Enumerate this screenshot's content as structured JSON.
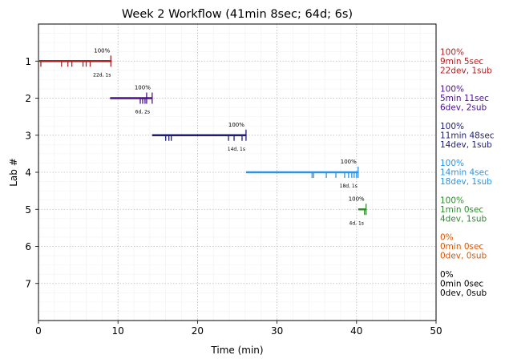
{
  "chart_data": {
    "type": "timeline",
    "title": "Week 2 Workflow (41min 8sec; 64d; 6s)",
    "xlabel": "Time (min)",
    "ylabel": "Lab #",
    "xlim": [
      0,
      50
    ],
    "ylim": [
      0,
      8
    ],
    "x_ticks": [
      0,
      10,
      20,
      30,
      40,
      50
    ],
    "y_ticks": [
      1,
      2,
      3,
      4,
      5,
      6,
      7
    ],
    "grid": true,
    "labs": [
      {
        "lab": 1,
        "color": "#b22222",
        "start": 0.1,
        "end": 9.2,
        "pct_label": "100%",
        "counts_label": "22d, 1s",
        "dev_ticks": [
          0.3,
          2.9,
          3.7,
          4.2,
          5.6,
          6.0,
          6.5
        ],
        "sub_ticks": [
          9.1
        ],
        "summary": [
          "100%",
          "9min 5sec",
          "22dev, 1sub"
        ]
      },
      {
        "lab": 2,
        "color": "#4b0f8f",
        "start": 9.0,
        "end": 14.3,
        "pct_label": "100%",
        "counts_label": "6d, 2s",
        "dev_ticks": [
          12.8,
          13.1,
          13.4
        ],
        "sub_ticks": [
          13.6,
          14.3
        ],
        "summary": [
          "100%",
          "5min 11sec",
          "6dev, 2sub"
        ]
      },
      {
        "lab": 3,
        "color": "#1c1c7a",
        "start": 14.3,
        "end": 26.1,
        "pct_label": "100%",
        "counts_label": "14d, 1s",
        "dev_ticks": [
          16.0,
          16.4,
          16.7,
          23.9,
          24.6,
          25.6
        ],
        "sub_ticks": [
          26.1
        ],
        "summary": [
          "100%",
          "11min 48sec",
          "14dev, 1sub"
        ]
      },
      {
        "lab": 4,
        "color": "#2c94e4",
        "start": 26.1,
        "end": 40.2,
        "pct_label": "100%",
        "counts_label": "18d, 1s",
        "dev_ticks": [
          34.4,
          34.6,
          36.2,
          37.4,
          38.5,
          39.0,
          39.4,
          39.7,
          40.0
        ],
        "sub_ticks": [
          40.2
        ],
        "summary": [
          "100%",
          "14min 4sec",
          "18dev, 1sub"
        ]
      },
      {
        "lab": 5,
        "color": "#2e8b2e",
        "start": 40.2,
        "end": 41.2,
        "pct_label": "100%",
        "counts_label": "4d, 1s",
        "dev_ticks": [
          41.0
        ],
        "sub_ticks": [
          41.2
        ],
        "summary": [
          "100%",
          "1min 0sec",
          "4dev, 1sub"
        ]
      },
      {
        "lab": 6,
        "color": "#dd5500",
        "start": null,
        "end": null,
        "pct_label": "",
        "counts_label": "",
        "dev_ticks": [],
        "sub_ticks": [],
        "summary": [
          "0%",
          "0min 0sec",
          "0dev, 0sub"
        ]
      },
      {
        "lab": 7,
        "color": "#000000",
        "start": null,
        "end": null,
        "pct_label": "",
        "counts_label": "",
        "dev_ticks": [],
        "sub_ticks": [],
        "summary": [
          "0%",
          "0min 0sec",
          "0dev, 0sub"
        ]
      }
    ]
  }
}
